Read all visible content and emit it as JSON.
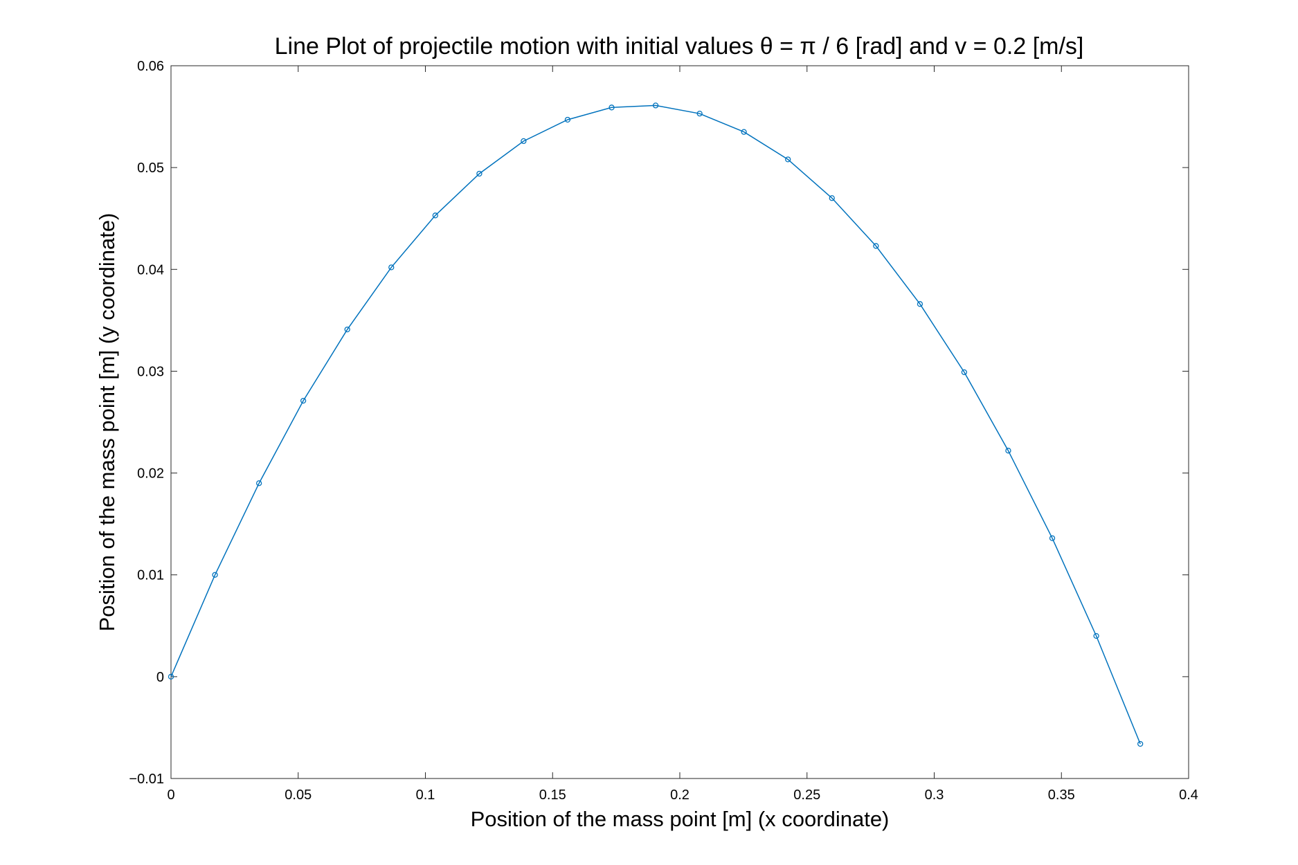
{
  "chart_data": {
    "type": "line",
    "title": "Line Plot of projectile motion with initial values θ = π / 6 [rad] and v = 0.2 [m/s]",
    "xlabel": "Position of the mass point [m] (x coordinate)",
    "ylabel": "Position of the mass point [m] (y coordinate)",
    "xlim": [
      0,
      0.4
    ],
    "ylim": [
      -0.01,
      0.06
    ],
    "xticks": [
      0,
      0.05,
      0.1,
      0.15,
      0.2,
      0.25,
      0.3,
      0.35,
      0.4
    ],
    "xtick_labels": [
      "0",
      "0.05",
      "0.1",
      "0.15",
      "0.2",
      "0.25",
      "0.3",
      "0.35",
      "0.4"
    ],
    "yticks": [
      -0.01,
      0,
      0.01,
      0.02,
      0.03,
      0.04,
      0.05,
      0.06
    ],
    "ytick_labels": [
      "−0.01",
      "0",
      "0.01",
      "0.02",
      "0.03",
      "0.04",
      "0.05",
      "0.06"
    ],
    "grid": false,
    "line_color": "#0072BD",
    "marker": "circle",
    "series": [
      {
        "x": [
          0,
          0.0173,
          0.0346,
          0.052,
          0.0693,
          0.0866,
          0.1039,
          0.1212,
          0.1386,
          0.1559,
          0.1732,
          0.1905,
          0.2078,
          0.2252,
          0.2425,
          0.2598,
          0.2771,
          0.2944,
          0.3118,
          0.3291,
          0.3464,
          0.3637,
          0.381
        ],
        "y": [
          0,
          0.01,
          0.019,
          0.0271,
          0.0341,
          0.0402,
          0.0453,
          0.0494,
          0.0526,
          0.0547,
          0.0559,
          0.0561,
          0.0553,
          0.0535,
          0.0508,
          0.047,
          0.0423,
          0.0366,
          0.0299,
          0.0222,
          0.0136,
          0.004,
          -0.0066
        ]
      }
    ]
  }
}
